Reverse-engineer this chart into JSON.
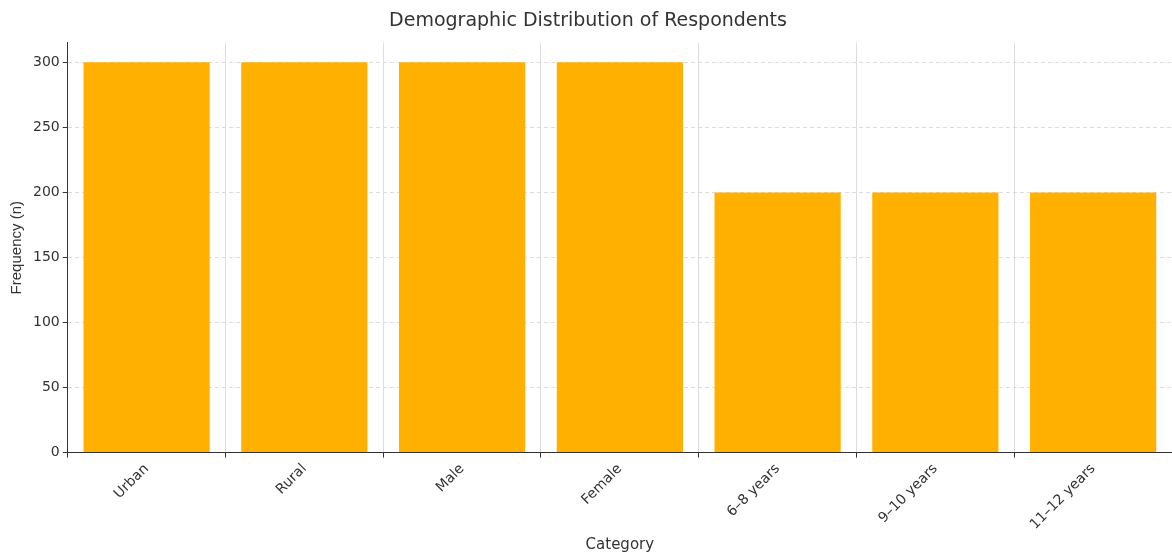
{
  "chart_data": {
    "type": "bar",
    "title": "Demographic Distribution of Respondents",
    "xlabel": "Category",
    "ylabel": "Frequency (n)",
    "categories": [
      "Urban",
      "Rural",
      "Male",
      "Female",
      "6–8 years",
      "9–10 years",
      "11–12 years"
    ],
    "values": [
      300,
      300,
      300,
      300,
      200,
      200,
      200
    ],
    "color": "#ffb000",
    "ylim": [
      0,
      315
    ],
    "yticks": [
      0,
      50,
      100,
      150,
      200,
      250,
      300
    ],
    "grid": true
  }
}
